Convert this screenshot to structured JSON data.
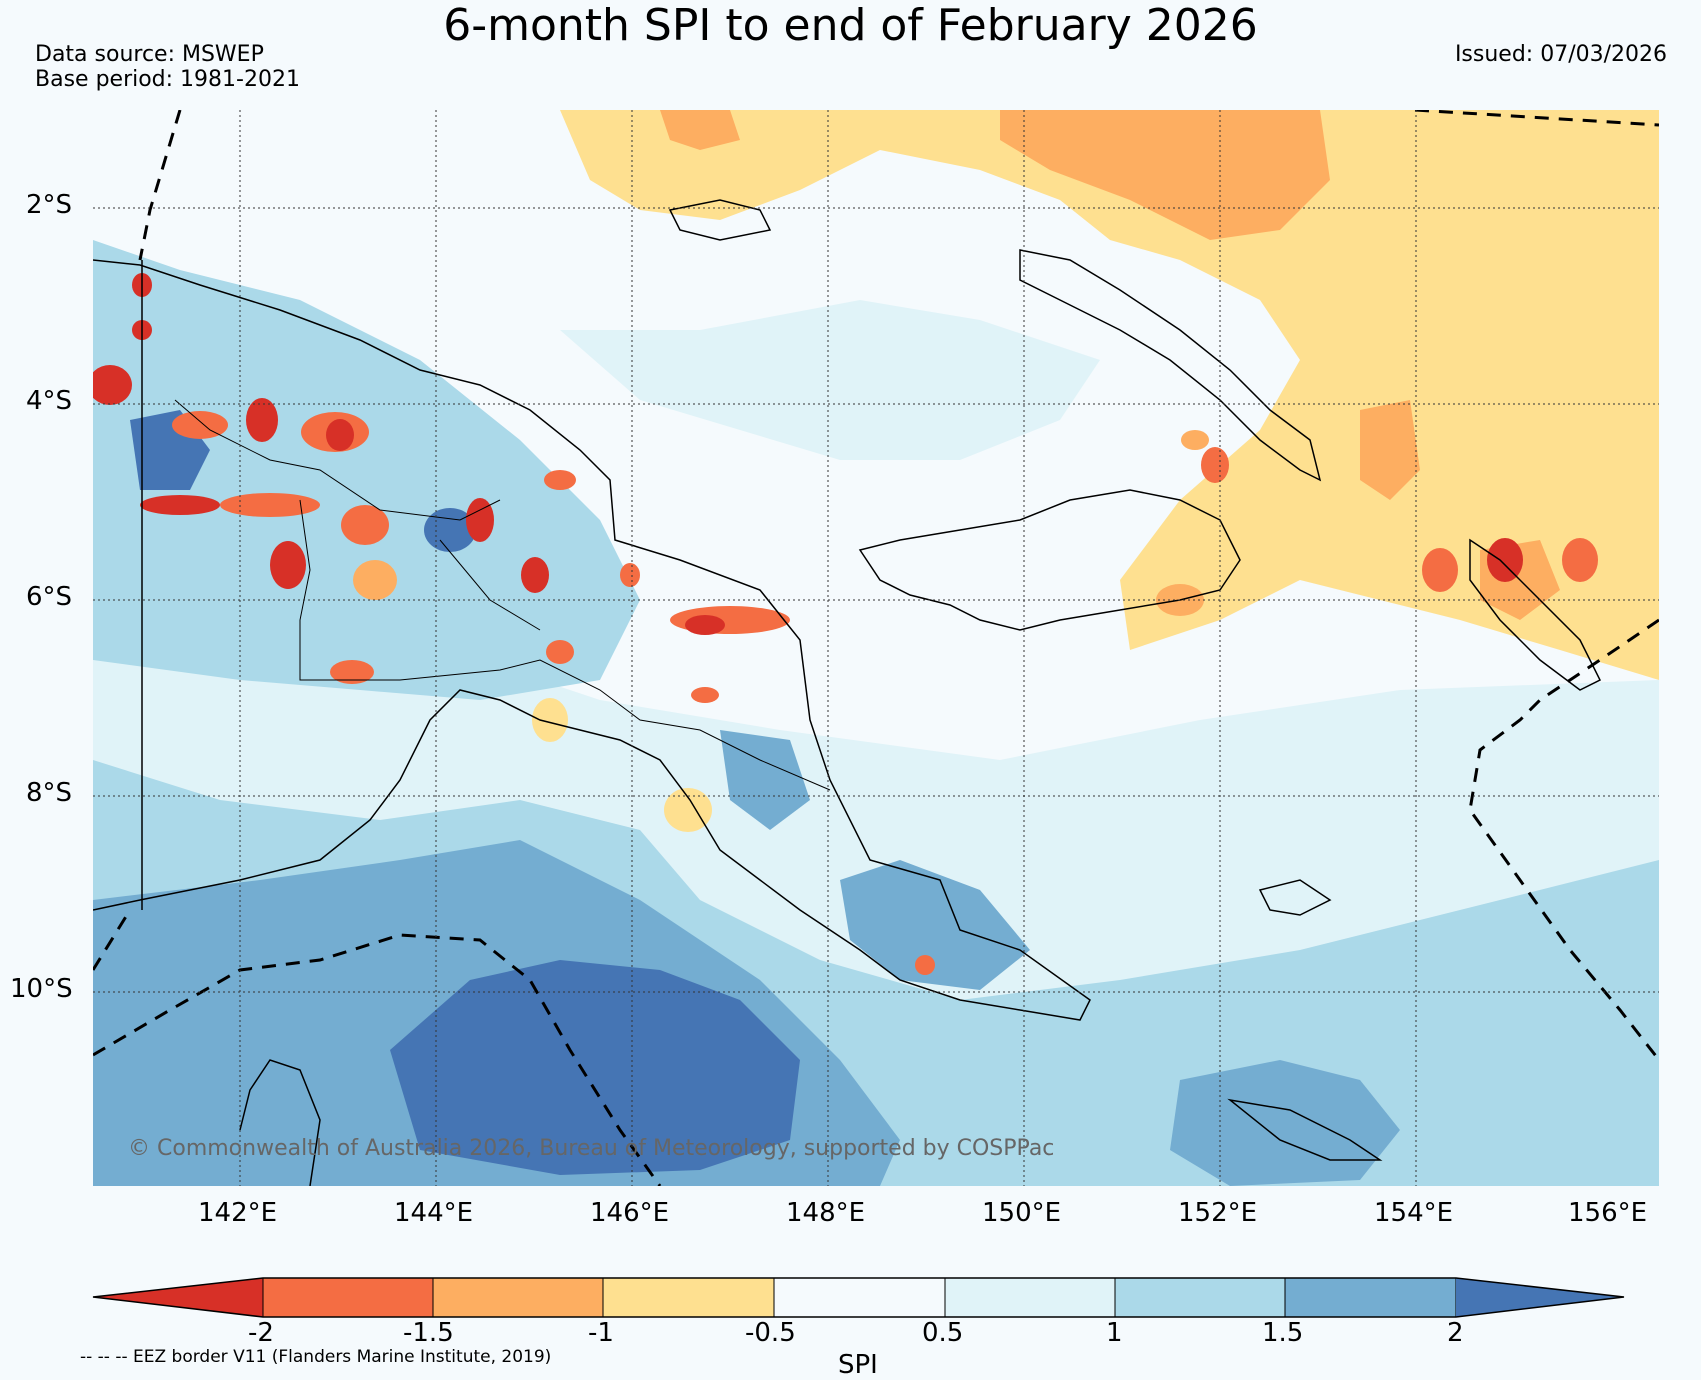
{
  "title": "6-month SPI to end of February 2026",
  "data_source": "Data source: MSWEP",
  "base_period": "Base period: 1981-2021",
  "issued": "Issued: 07/03/2026",
  "copyright": "© Commonwealth of Australia 2026, Bureau of Meteorology, supported by COSPPac",
  "lat_labels": [
    "2°S",
    "4°S",
    "6°S",
    "8°S",
    "10°S"
  ],
  "lon_labels": [
    "142°E",
    "144°E",
    "146°E",
    "148°E",
    "150°E",
    "152°E",
    "154°E",
    "156°E"
  ],
  "colorbar": {
    "label": "SPI",
    "ticks": [
      "-2",
      "-1.5",
      "-1",
      "-0.5",
      "0.5",
      "1",
      "1.5",
      "2"
    ],
    "colors": [
      "#d73027",
      "#f46d43",
      "#fdae61",
      "#fee090",
      "#f5fafd",
      "#e0f3f8",
      "#abd9e9",
      "#74add1",
      "#4575b4"
    ]
  },
  "eez_note": "-- -- -- EEZ border V11 (Flanders Marine Institute, 2019)"
}
